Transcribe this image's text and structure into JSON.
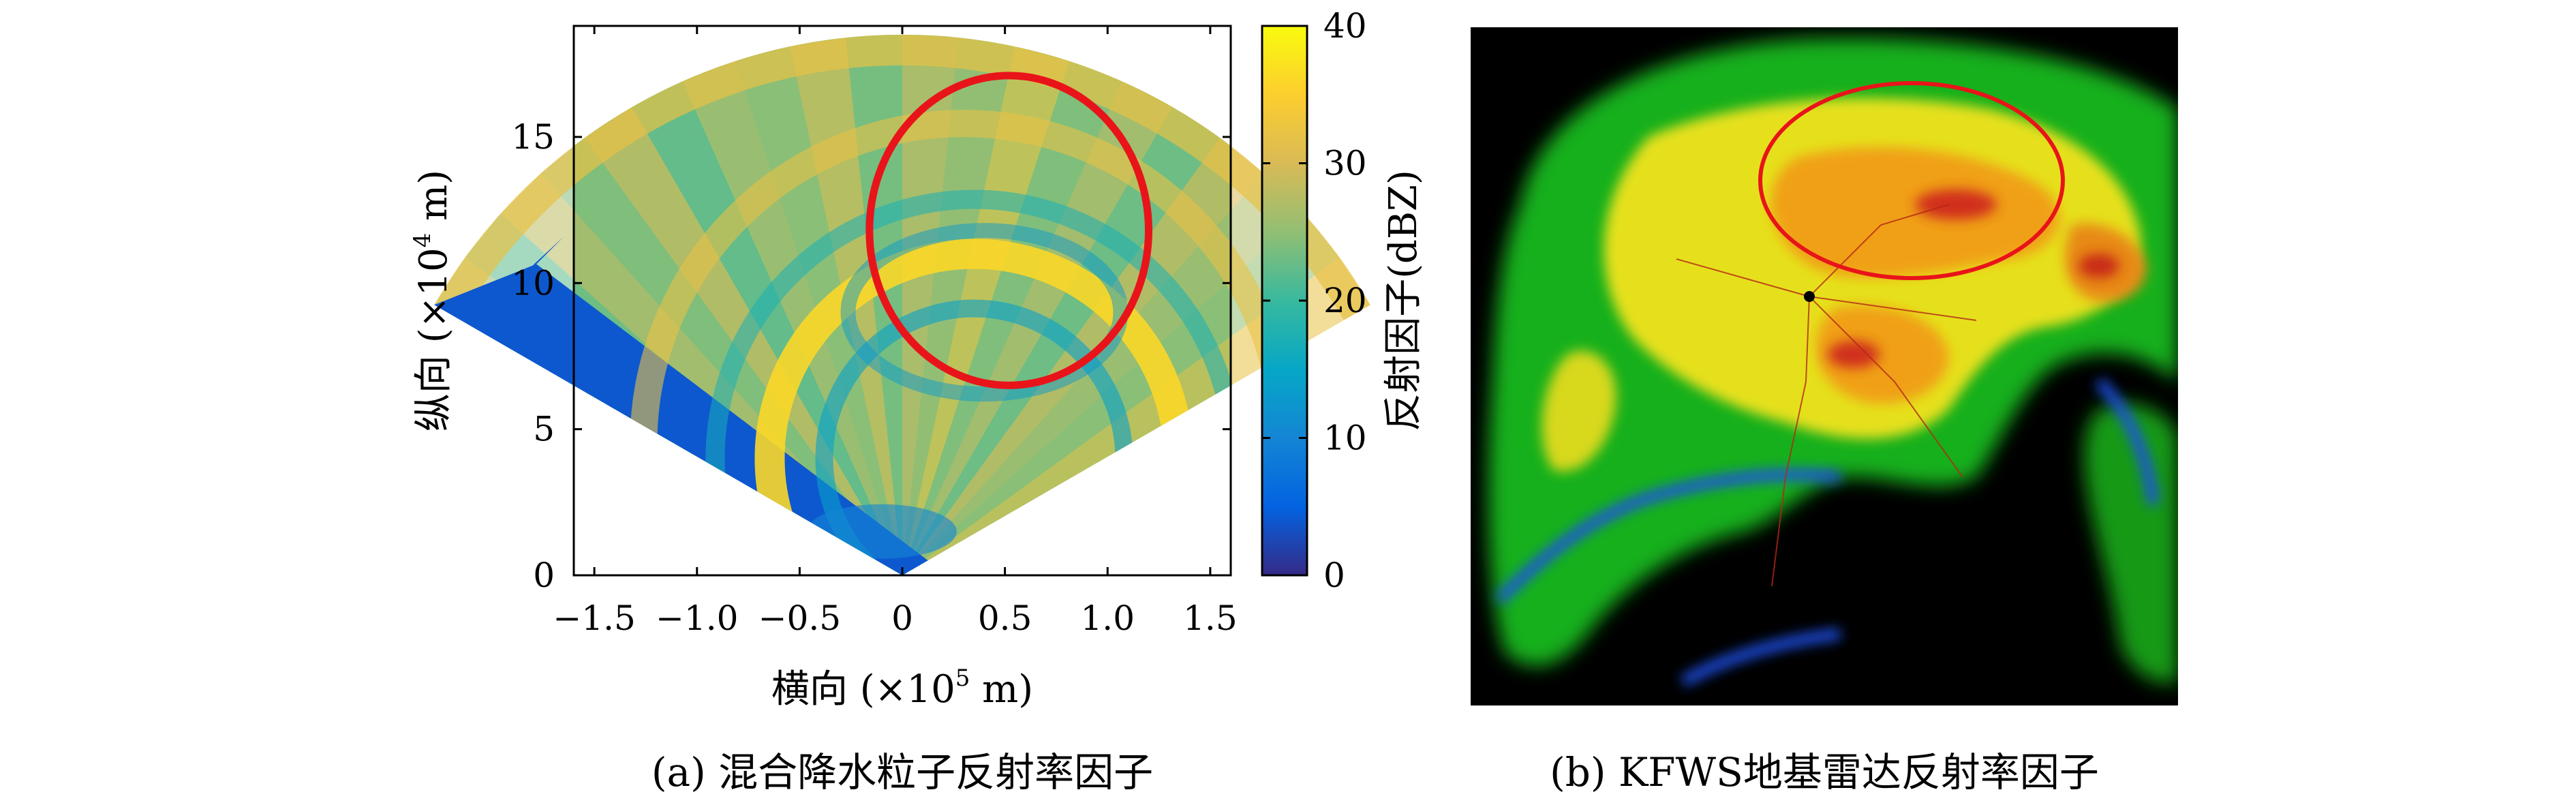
{
  "panel_a": {
    "caption": "(a) 混合降水粒子反射率因子",
    "xlabel_prefix": "横向 (×10",
    "xlabel_exp": "5",
    "xlabel_suffix": " m)",
    "ylabel_prefix": "纵向 (×10",
    "ylabel_exp": "4",
    "ylabel_suffix": " m)",
    "colorbar_label": "反射因子(dBZ)"
  },
  "panel_b": {
    "caption": "(b) KFWS地基雷达反射率因子"
  },
  "colors": {
    "colormap": [
      "#352a87",
      "#0363e1",
      "#1485d4",
      "#06a7c6",
      "#38b99e",
      "#92bf73",
      "#d9ba56",
      "#fcce2e",
      "#f9fb0e"
    ],
    "highlight_circle": "#e8141a",
    "radar_background": "#000000"
  },
  "chart_data": [
    {
      "type": "heatmap",
      "subtype": "radar sector plot",
      "title": "",
      "xlabel": "横向 (×10^5 m)",
      "ylabel": "纵向 (×10^4 m)",
      "xlim": [
        -1.6,
        1.6
      ],
      "ylim": [
        0,
        18.8
      ],
      "x_ticks": [
        -1.5,
        -1.0,
        -0.5,
        0,
        0.5,
        1.0,
        1.5
      ],
      "x_tick_labels": [
        "−1.5",
        "−1.0",
        "−0.5",
        "0",
        "0.5",
        "1.0",
        "1.5"
      ],
      "y_ticks": [
        0,
        5,
        10,
        15
      ],
      "y_tick_labels": [
        "0",
        "5",
        "10",
        "15"
      ],
      "colorbar": {
        "label": "反射因子(dBZ)",
        "range": [
          0,
          40
        ],
        "ticks": [
          0,
          10,
          20,
          30,
          40
        ],
        "tick_labels": [
          "0",
          "10",
          "20",
          "30",
          "40"
        ]
      },
      "sector": {
        "apex": [
          0,
          0
        ],
        "radius_y_units": 18.5,
        "half_angle_deg": 60
      },
      "highlight_ellipse": {
        "center": [
          0.52,
          11.8
        ],
        "radius_x": 0.68,
        "radius_y": 5.3
      },
      "reflectivity_features": [
        {
          "feature": "low-reflectivity edge (upper-left sector boundary)",
          "dbz": 4
        },
        {
          "feature": "inner arc band",
          "dbz": 36
        },
        {
          "feature": "outer arc band",
          "dbz": 32
        },
        {
          "feature": "background field",
          "dbz": 24
        }
      ]
    },
    {
      "type": "heatmap",
      "subtype": "radar reflectivity image",
      "title": "",
      "colorbar": null
    }
  ]
}
